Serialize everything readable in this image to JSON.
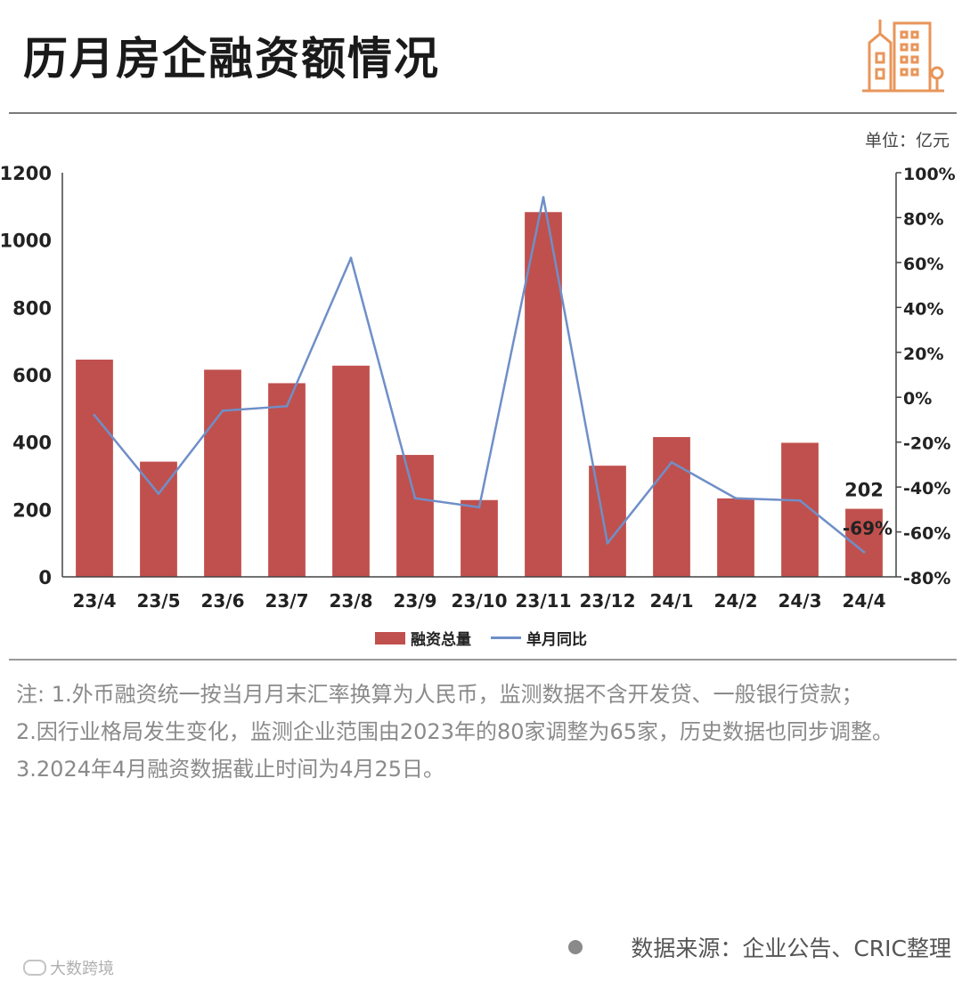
{
  "header": {
    "title": "历月房企融资额情况",
    "logo_icon": "city-buildings-icon"
  },
  "unit_label": "单位：亿元",
  "chart_data": {
    "type": "bar",
    "categories": [
      "23/4",
      "23/5",
      "23/6",
      "23/7",
      "23/8",
      "23/9",
      "23/10",
      "23/11",
      "23/12",
      "24/1",
      "24/2",
      "24/3",
      "24/4"
    ],
    "series": [
      {
        "name": "融资总量",
        "type": "bar",
        "axis": "left",
        "color": "#c0504d",
        "values": [
          645,
          342,
          615,
          575,
          627,
          362,
          228,
          1083,
          330,
          415,
          233,
          398,
          202
        ]
      },
      {
        "name": "单月同比",
        "type": "line",
        "axis": "right",
        "color": "#6f8fc8",
        "values": [
          -8,
          -43,
          -6,
          -4,
          62,
          -45,
          -49,
          89,
          -65,
          -29,
          -45,
          -46,
          -69
        ]
      }
    ],
    "left_axis": {
      "min": 0,
      "max": 1200,
      "ticks": [
        "0",
        "200",
        "400",
        "600",
        "800",
        "1000",
        "1200"
      ]
    },
    "right_axis": {
      "min": -80,
      "max": 100,
      "ticks": [
        "-80%",
        "-60%",
        "-40%",
        "-20%",
        "0%",
        "20%",
        "40%",
        "60%",
        "80%",
        "100%"
      ]
    },
    "data_labels": [
      {
        "category": "24/4",
        "series": "融资总量",
        "text": "202"
      },
      {
        "category": "24/4",
        "series": "单月同比",
        "text": "-69%"
      }
    ],
    "grid": false,
    "legend": "bottom-center"
  },
  "legend": {
    "bar_label": "融资总量",
    "line_label": "单月同比"
  },
  "notes": {
    "note1": "注: 1.外币融资统一按当月月末汇率换算为人民币，监测数据不含开发贷、一般银行贷款；",
    "note2": "2.因行业格局发生变化，监测企业范围由2023年的80家调整为65家，历史数据也同步调整。",
    "note3": "3.2024年4月融资数据截止时间为4月25日。"
  },
  "source": "数据来源：企业公告、CRIC整理",
  "watermark": "大数跨境"
}
